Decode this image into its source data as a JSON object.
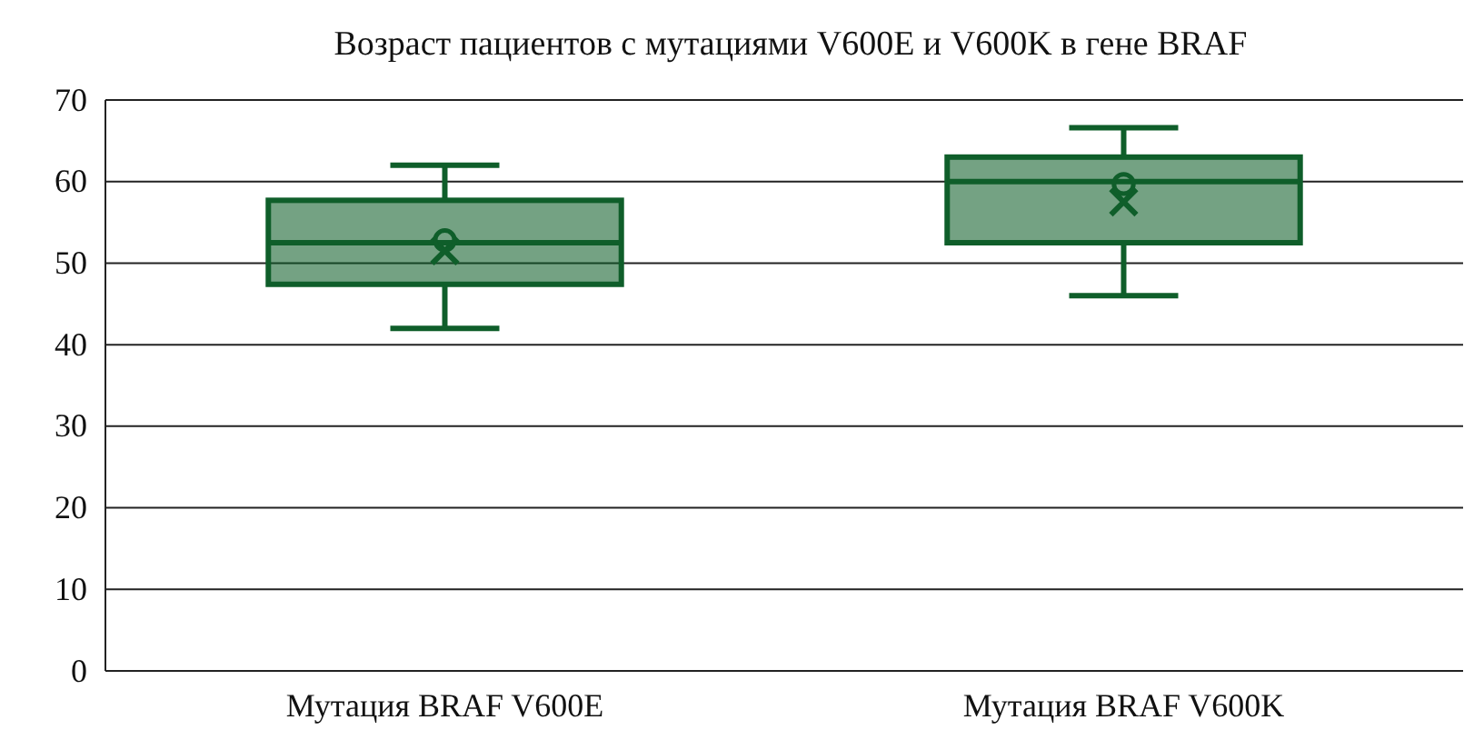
{
  "chart_data": {
    "type": "box",
    "title": "Возраст пациентов с мутациями V600E и V600K в гене BRAF",
    "categories": [
      "Мутация BRAF V600E",
      "Мутация BRAF V600K"
    ],
    "series": [
      {
        "color": "#0f5e2a",
        "boxes": [
          {
            "low": 42,
            "q1": 47.4,
            "median": 52.5,
            "q3": 57.7,
            "high": 62,
            "mean": 51.5
          },
          {
            "low": 46,
            "q1": 52.5,
            "median": 60,
            "q3": 63,
            "high": 66.6,
            "mean": 57.5
          }
        ]
      },
      {
        "type": "scatter",
        "color": "#0f5e2a",
        "x": [
          "Мутация BRAF V600E",
          "Мутация BRAF V600K"
        ],
        "values": [
          52.8,
          59.7
        ]
      }
    ],
    "ylim": [
      0,
      70
    ],
    "yticks": [
      0,
      10,
      20,
      30,
      40,
      50,
      60,
      70
    ],
    "grid": "y",
    "marker": "circle"
  }
}
